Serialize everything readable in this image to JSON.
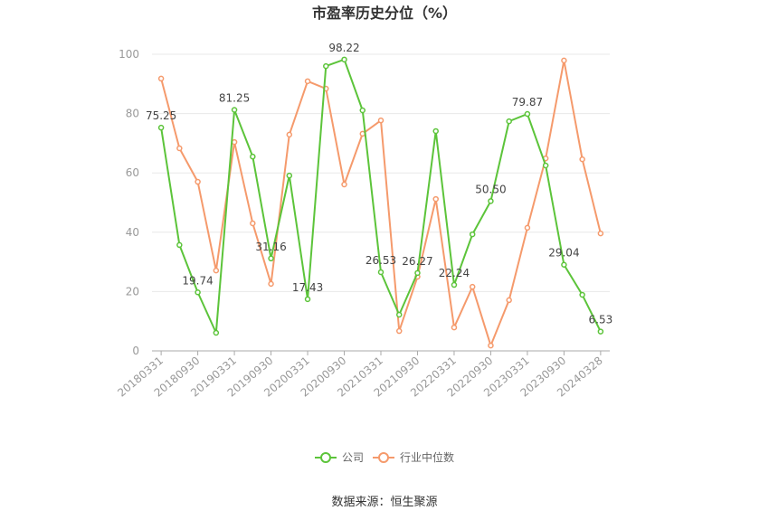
{
  "chart_data": {
    "type": "line",
    "title": "市盈率历史分位（%）",
    "categories": [
      "20180331",
      "",
      "20180930",
      "",
      "20190331",
      "",
      "20190930",
      "",
      "20200331",
      "",
      "20200930",
      "",
      "20210331",
      "",
      "20210930",
      "",
      "20220331",
      "",
      "20220930",
      "",
      "20230331",
      "",
      "20230930",
      "",
      "20240328"
    ],
    "ylim": [
      0,
      100
    ],
    "yticks": [
      0,
      20,
      40,
      60,
      80,
      100
    ],
    "grid": true,
    "legend_position": "bottom",
    "series": [
      {
        "name": "公司",
        "color": "#5cc43a",
        "values": [
          75.25,
          35.7,
          19.74,
          6.1,
          81.25,
          65.5,
          31.16,
          59.1,
          17.43,
          96.0,
          98.22,
          81.1,
          26.53,
          12.2,
          26.27,
          74.1,
          22.24,
          39.3,
          50.5,
          77.4,
          79.87,
          62.5,
          29.04,
          18.9,
          6.53
        ],
        "labels": [
          "75.25",
          null,
          "19.74",
          null,
          "81.25",
          null,
          "31.16",
          null,
          "17.43",
          null,
          "98.22",
          null,
          "26.53",
          null,
          "26.27",
          null,
          "22.24",
          null,
          "50.50",
          null,
          "79.87",
          null,
          "29.04",
          null,
          "6.53"
        ]
      },
      {
        "name": "行业中位数",
        "color": "#f59a6c",
        "values": [
          91.8,
          68.3,
          57.0,
          27.1,
          70.4,
          43.0,
          22.6,
          72.9,
          90.9,
          88.4,
          56.1,
          73.2,
          77.7,
          6.7,
          25.0,
          51.2,
          7.9,
          21.6,
          1.8,
          17.1,
          41.5,
          64.9,
          97.9,
          64.6,
          39.6
        ]
      }
    ]
  },
  "footer": {
    "source": "数据来源：恒生聚源"
  }
}
